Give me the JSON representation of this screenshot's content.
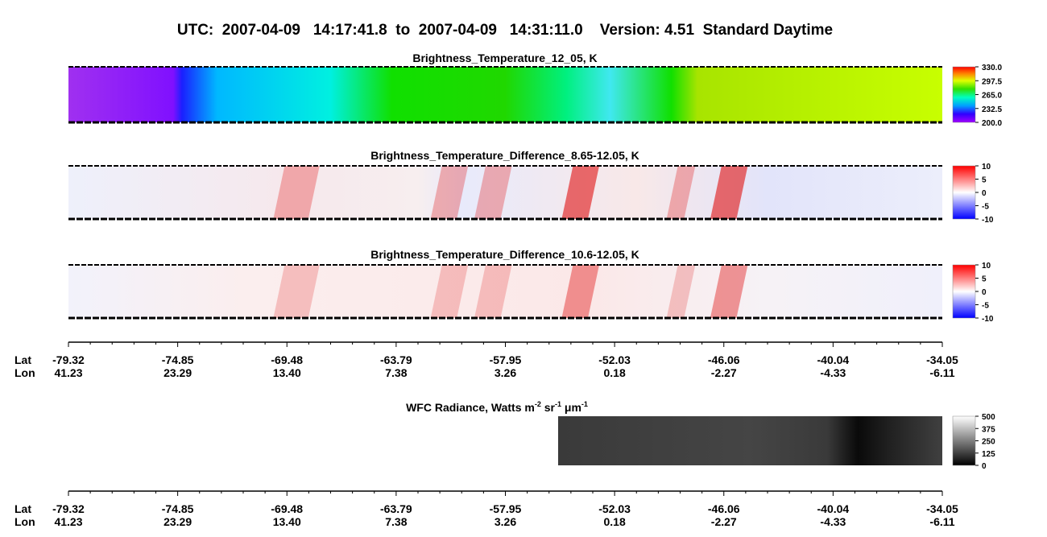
{
  "header": {
    "title": "UTC:  2007-04-09   14:17:41.8  to  2007-04-09   14:31:11.0    Version: 4.51  Standard Daytime"
  },
  "panels": [
    {
      "title": "Brightness_Temperature_12_05, K",
      "colorbar": [
        "330.0",
        "297.5",
        "265.0",
        "232.5",
        "200.0"
      ]
    },
    {
      "title": "Brightness_Temperature_Difference_8.65-12.05, K",
      "colorbar": [
        "10",
        "5",
        "0",
        "-5",
        "-10"
      ]
    },
    {
      "title": "Brightness_Temperature_Difference_10.6-12.05, K",
      "colorbar": [
        "10",
        "5",
        "0",
        "-5",
        "-10"
      ]
    }
  ],
  "axis": {
    "lat_label": "Lat",
    "lon_label": "Lon",
    "lat": [
      "-79.32",
      "-74.85",
      "-69.48",
      "-63.79",
      "-57.95",
      "-52.03",
      "-46.06",
      "-40.04",
      "-34.05"
    ],
    "lon": [
      "41.23",
      "23.29",
      "13.40",
      "7.38",
      "3.26",
      "0.18",
      "-2.27",
      "-4.33",
      "-6.11"
    ]
  },
  "wfc": {
    "title_parts": [
      "WFC Radiance, Watts m",
      "-2",
      " sr",
      "-1",
      " μm",
      "-1"
    ],
    "colorbar": [
      "500",
      "375",
      "250",
      "125",
      "0"
    ]
  }
}
